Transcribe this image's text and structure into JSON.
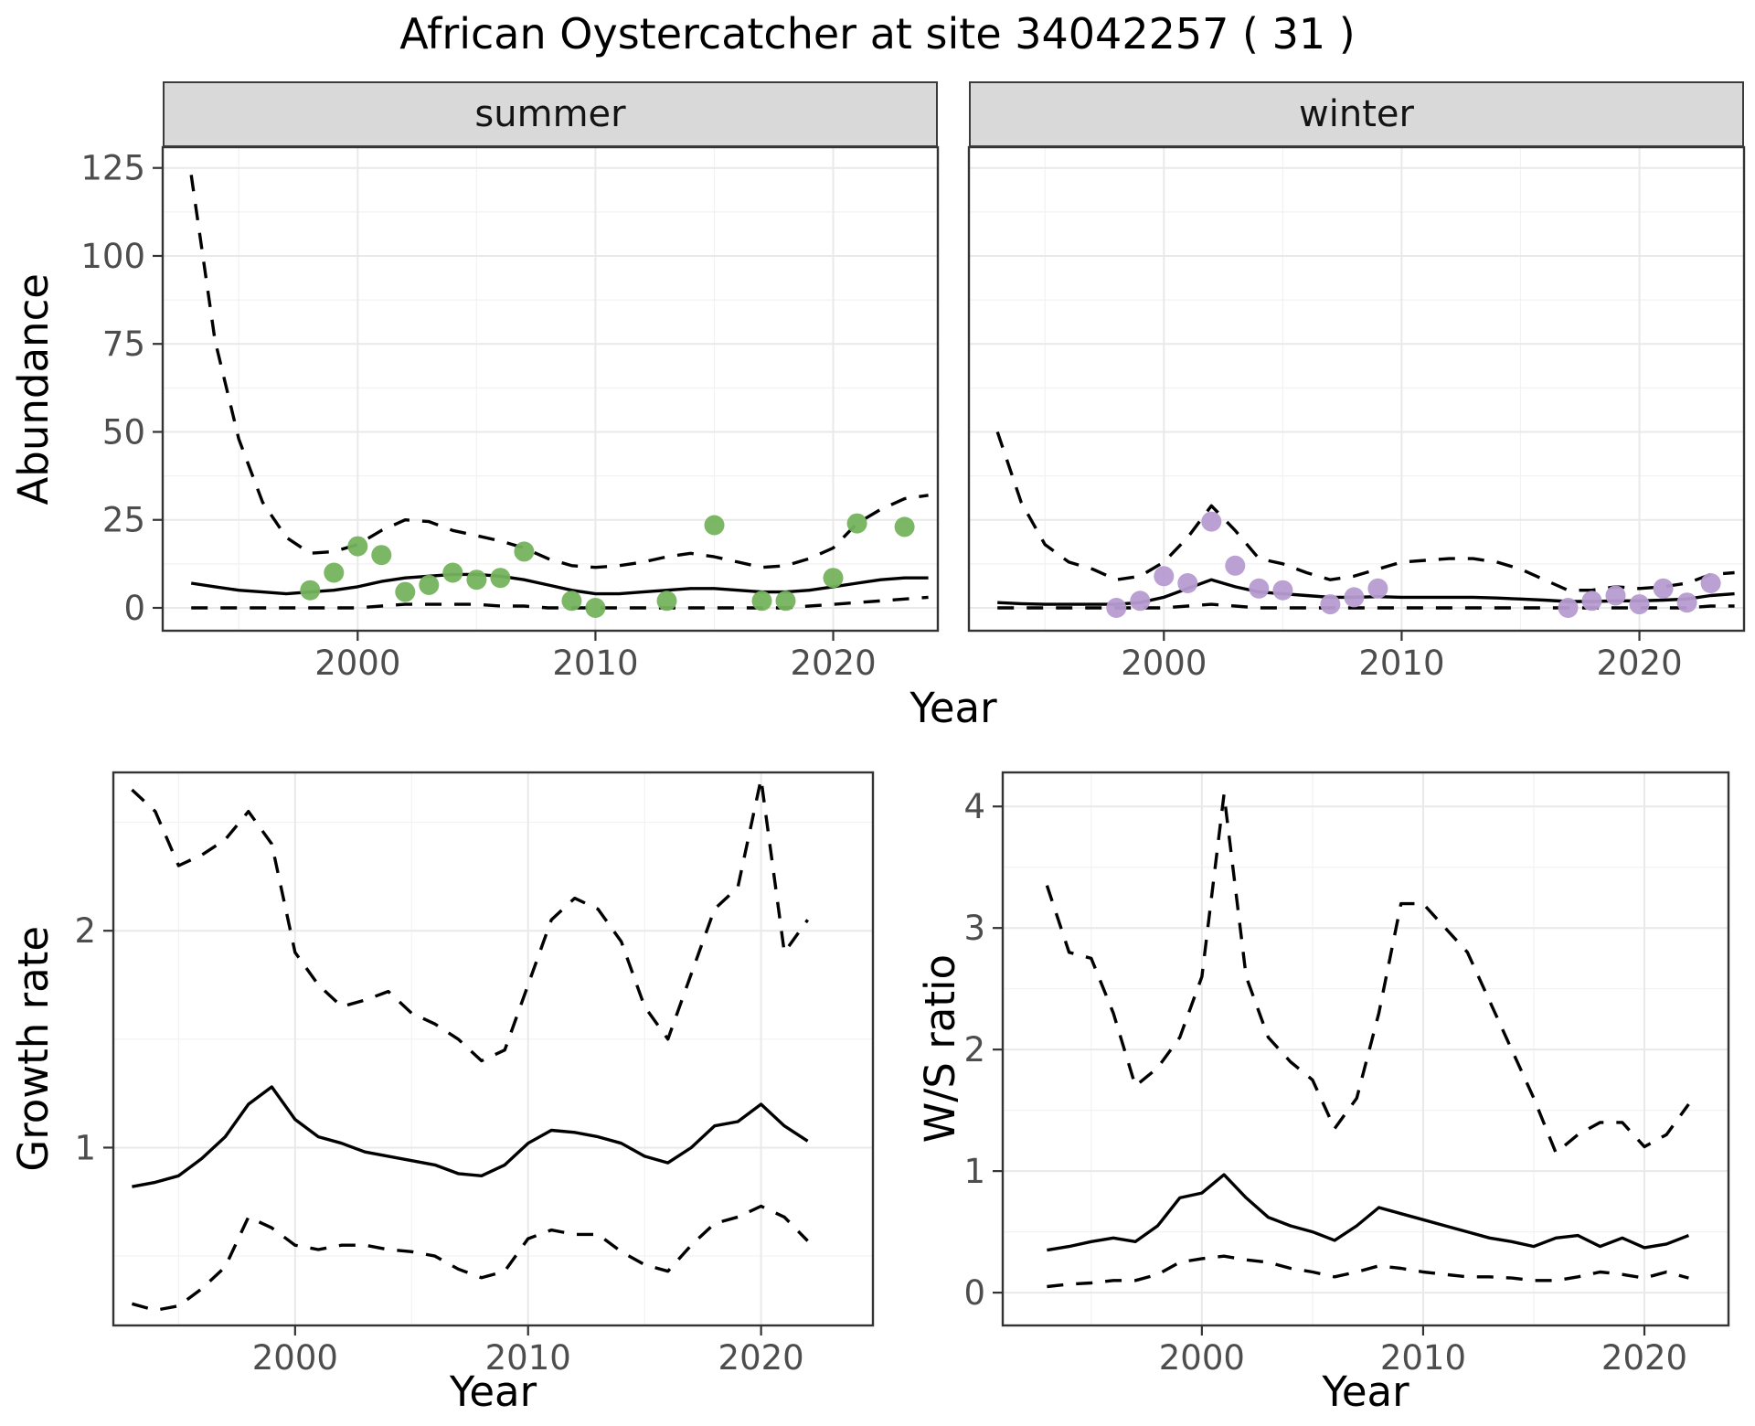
{
  "title": "African Oystercatcher at site 34042257 ( 31 )",
  "labels": {
    "facet_summer": "summer",
    "facet_winter": "winter",
    "abundance_ylabel": "Abundance",
    "top_xlabel": "Year",
    "growth_ylabel": "Growth rate",
    "growth_xlabel": "Year",
    "ratio_ylabel": "W/S ratio",
    "ratio_xlabel": "Year"
  },
  "colors": {
    "summer_points": "#75b35d",
    "winter_points": "#b69bd1",
    "line": "#000000",
    "strip_background": "#d9d9d9",
    "panel_border": "#333333",
    "grid_major": "#e9e9e9",
    "grid_minor": "#f2f2f2",
    "tick_text": "#4d4d4d"
  },
  "chart_data": [
    {
      "id": "abundance_summer",
      "type": "line",
      "facet": "summer",
      "title": "summer",
      "xlabel": "Year",
      "ylabel": "Abundance",
      "xlim": [
        1991.8,
        2024.4
      ],
      "ylim": [
        -6.5,
        130.9
      ],
      "xticks": [
        2000,
        2010,
        2020
      ],
      "yticks": [
        0,
        25,
        50,
        75,
        100,
        125
      ],
      "grid": true,
      "legend": "none",
      "years": [
        1993,
        1994,
        1995,
        1996,
        1997,
        1998,
        1999,
        2000,
        2001,
        2002,
        2003,
        2004,
        2005,
        2006,
        2007,
        2008,
        2009,
        2010,
        2011,
        2012,
        2013,
        2014,
        2015,
        2016,
        2017,
        2018,
        2019,
        2020,
        2021,
        2022,
        2023,
        2024
      ],
      "series": [
        {
          "name": "upper_ci",
          "style": "dashed",
          "values": [
            123,
            76,
            48,
            30,
            20,
            15.5,
            16,
            18,
            22,
            25,
            24.5,
            22,
            20.5,
            19,
            17,
            14,
            12,
            11.5,
            12,
            13,
            14.5,
            15.5,
            14.5,
            13,
            11.5,
            12,
            14,
            17,
            24,
            28,
            31,
            32
          ]
        },
        {
          "name": "median_fit",
          "style": "solid",
          "values": [
            7,
            6,
            5,
            4.5,
            4,
            4.5,
            5,
            6,
            7.5,
            8.5,
            9,
            9.5,
            9.5,
            9,
            8,
            6.5,
            5,
            4,
            4,
            4.5,
            5,
            5.5,
            5.5,
            5,
            4.5,
            4.5,
            5,
            6,
            7,
            8,
            8.5,
            8.5
          ]
        },
        {
          "name": "lower_ci",
          "style": "dashed",
          "values": [
            0,
            0,
            0,
            0,
            0,
            0,
            0,
            0,
            0.5,
            1,
            1,
            1,
            1,
            0.5,
            0.5,
            0,
            0,
            0,
            0,
            0,
            0,
            0,
            0,
            0,
            0,
            0,
            0.5,
            1,
            1.5,
            2,
            2.5,
            3
          ]
        }
      ],
      "observations": {
        "name": "observed_counts_summer",
        "color": "#75b35d",
        "x": [
          1998,
          1999,
          2000,
          2001,
          2002,
          2003,
          2004,
          2005,
          2006,
          2007,
          2009,
          2010,
          2013,
          2015,
          2017,
          2018,
          2020,
          2021,
          2023
        ],
        "y": [
          5,
          10,
          17.5,
          15,
          4.5,
          6.5,
          10,
          8,
          8.5,
          16,
          2,
          0,
          2,
          23.5,
          2,
          2,
          8.5,
          24,
          23
        ]
      }
    },
    {
      "id": "abundance_winter",
      "type": "line",
      "facet": "winter",
      "title": "winter",
      "xlabel": "Year",
      "ylabel": "Abundance",
      "xlim": [
        1991.8,
        2024.4
      ],
      "ylim": [
        -6.5,
        130.9
      ],
      "xticks": [
        2000,
        2010,
        2020
      ],
      "yticks": [
        0,
        25,
        50,
        75,
        100,
        125
      ],
      "grid": true,
      "legend": "none",
      "years": [
        1993,
        1994,
        1995,
        1996,
        1997,
        1998,
        1999,
        2000,
        2001,
        2002,
        2003,
        2004,
        2005,
        2006,
        2007,
        2008,
        2009,
        2010,
        2011,
        2012,
        2013,
        2014,
        2015,
        2016,
        2017,
        2018,
        2019,
        2020,
        2021,
        2022,
        2023,
        2024
      ],
      "series": [
        {
          "name": "upper_ci",
          "style": "dashed",
          "values": [
            50,
            30,
            18,
            13,
            11,
            8,
            9,
            13,
            20,
            29,
            22,
            14,
            12.5,
            10,
            8,
            9,
            11,
            13,
            13.5,
            14,
            14,
            13,
            11,
            8,
            5,
            5,
            6,
            5.5,
            6,
            7,
            9.5,
            10
          ]
        },
        {
          "name": "median_fit",
          "style": "solid",
          "values": [
            1.5,
            1.2,
            1,
            1,
            1,
            1,
            1.5,
            3,
            5.5,
            8,
            6,
            4.5,
            4,
            3.5,
            3,
            3,
            3.2,
            3,
            3,
            3,
            3,
            2.8,
            2.5,
            2.2,
            1.8,
            1.8,
            2,
            2,
            2.2,
            2.5,
            3.5,
            4
          ]
        },
        {
          "name": "lower_ci",
          "style": "dashed",
          "values": [
            0,
            0,
            0,
            0,
            0,
            0,
            0,
            0,
            0.5,
            1,
            0.5,
            0,
            0,
            0,
            0,
            0,
            0,
            0,
            0,
            0,
            0,
            0,
            0,
            0,
            0,
            0,
            0,
            0,
            0,
            0,
            0.5,
            0.5
          ]
        }
      ],
      "observations": {
        "name": "observed_counts_winter",
        "color": "#b69bd1",
        "x": [
          1998,
          1999,
          2000,
          2001,
          2002,
          2003,
          2004,
          2005,
          2007,
          2008,
          2009,
          2017,
          2018,
          2019,
          2020,
          2021,
          2022,
          2023
        ],
        "y": [
          0,
          2,
          9,
          7,
          24.5,
          12,
          5.5,
          5,
          1,
          3,
          5.5,
          0,
          2,
          3.5,
          1,
          5.5,
          1.5,
          7
        ]
      }
    },
    {
      "id": "growth_rate",
      "type": "line",
      "title": "",
      "xlabel": "Year",
      "ylabel": "Growth rate",
      "xlim": [
        1992.2,
        2024.8
      ],
      "ylim": [
        0.18,
        2.73
      ],
      "xticks": [
        2000,
        2010,
        2020
      ],
      "yticks": [
        1,
        2
      ],
      "grid": true,
      "legend": "none",
      "years": [
        1993,
        1994,
        1995,
        1996,
        1997,
        1998,
        1999,
        2000,
        2001,
        2002,
        2003,
        2004,
        2005,
        2006,
        2007,
        2008,
        2009,
        2010,
        2011,
        2012,
        2013,
        2014,
        2015,
        2016,
        2017,
        2018,
        2019,
        2020,
        2021,
        2022
      ],
      "series": [
        {
          "name": "upper_ci",
          "style": "dashed",
          "values": [
            2.65,
            2.55,
            2.3,
            2.35,
            2.42,
            2.55,
            2.4,
            1.9,
            1.75,
            1.65,
            1.68,
            1.72,
            1.62,
            1.57,
            1.5,
            1.4,
            1.45,
            1.75,
            2.05,
            2.15,
            2.1,
            1.95,
            1.65,
            1.5,
            1.8,
            2.1,
            2.2,
            2.7,
            1.9,
            2.05
          ]
        },
        {
          "name": "median_fit",
          "style": "solid",
          "values": [
            0.82,
            0.84,
            0.87,
            0.95,
            1.05,
            1.2,
            1.28,
            1.13,
            1.05,
            1.02,
            0.98,
            0.96,
            0.94,
            0.92,
            0.88,
            0.87,
            0.92,
            1.02,
            1.08,
            1.07,
            1.05,
            1.02,
            0.96,
            0.93,
            1.0,
            1.1,
            1.12,
            1.2,
            1.1,
            1.03
          ]
        },
        {
          "name": "lower_ci",
          "style": "dashed",
          "values": [
            0.28,
            0.25,
            0.27,
            0.35,
            0.45,
            0.68,
            0.63,
            0.55,
            0.53,
            0.55,
            0.55,
            0.53,
            0.52,
            0.5,
            0.44,
            0.4,
            0.43,
            0.58,
            0.62,
            0.6,
            0.6,
            0.52,
            0.46,
            0.43,
            0.55,
            0.65,
            0.68,
            0.73,
            0.68,
            0.57
          ]
        }
      ]
    },
    {
      "id": "ws_ratio",
      "type": "line",
      "title": "",
      "xlabel": "Year",
      "ylabel": "W/S ratio",
      "xlim": [
        1991.0,
        2023.8
      ],
      "ylim": [
        -0.27,
        4.28
      ],
      "xticks": [
        2000,
        2010,
        2020
      ],
      "yticks": [
        0,
        1,
        2,
        3,
        4
      ],
      "grid": true,
      "legend": "none",
      "years": [
        1993,
        1994,
        1995,
        1996,
        1997,
        1998,
        1999,
        2000,
        2001,
        2002,
        2003,
        2004,
        2005,
        2006,
        2007,
        2008,
        2009,
        2010,
        2011,
        2012,
        2013,
        2014,
        2015,
        2016,
        2017,
        2018,
        2019,
        2020,
        2021,
        2022
      ],
      "series": [
        {
          "name": "upper_ci",
          "style": "dashed",
          "values": [
            3.35,
            2.8,
            2.75,
            2.3,
            1.7,
            1.85,
            2.1,
            2.6,
            4.1,
            2.6,
            2.1,
            1.9,
            1.75,
            1.35,
            1.6,
            2.3,
            3.2,
            3.2,
            3.0,
            2.8,
            2.4,
            2.0,
            1.6,
            1.15,
            1.3,
            1.4,
            1.4,
            1.2,
            1.3,
            1.55
          ]
        },
        {
          "name": "median_fit",
          "style": "solid",
          "values": [
            0.35,
            0.38,
            0.42,
            0.45,
            0.42,
            0.55,
            0.78,
            0.82,
            0.97,
            0.78,
            0.62,
            0.55,
            0.5,
            0.43,
            0.55,
            0.7,
            0.65,
            0.6,
            0.55,
            0.5,
            0.45,
            0.42,
            0.38,
            0.45,
            0.47,
            0.38,
            0.45,
            0.37,
            0.4,
            0.47
          ]
        },
        {
          "name": "lower_ci",
          "style": "dashed",
          "values": [
            0.05,
            0.07,
            0.08,
            0.1,
            0.1,
            0.15,
            0.25,
            0.28,
            0.3,
            0.27,
            0.25,
            0.2,
            0.17,
            0.13,
            0.17,
            0.22,
            0.2,
            0.17,
            0.15,
            0.13,
            0.13,
            0.12,
            0.1,
            0.1,
            0.13,
            0.17,
            0.15,
            0.12,
            0.17,
            0.12
          ]
        }
      ]
    }
  ]
}
